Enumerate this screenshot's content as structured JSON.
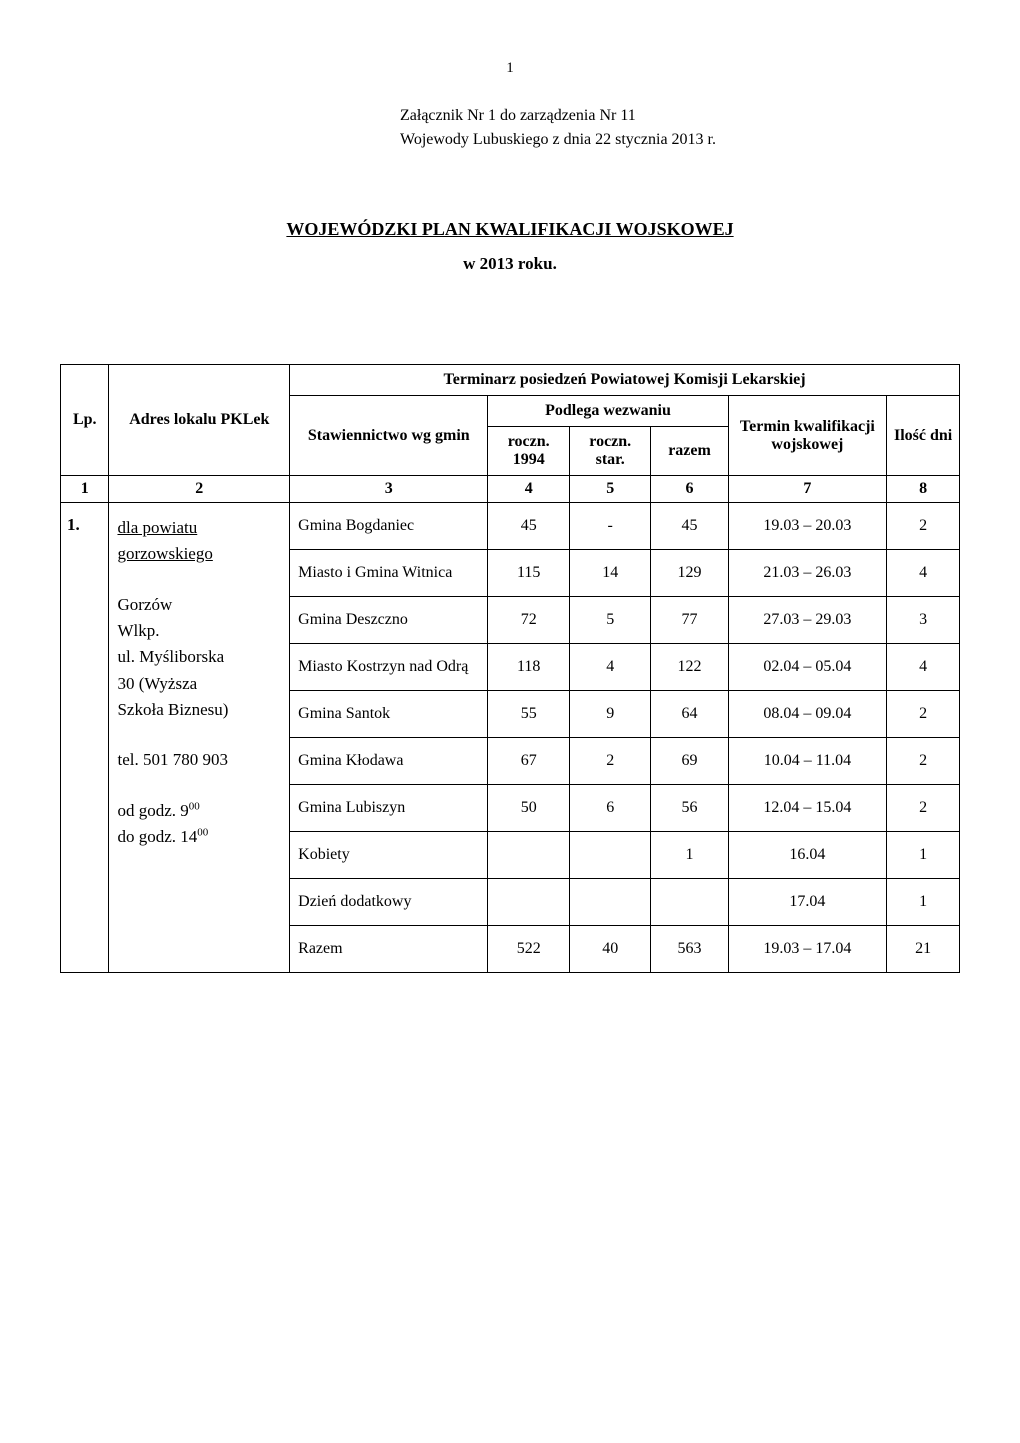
{
  "page_number": "1",
  "attachment_line1": "Załącznik Nr 1 do zarządzenia Nr  11",
  "attachment_line2": "Wojewody Lubuskiego z dnia 22 stycznia 2013 r.",
  "main_title": "WOJEWÓDZKI PLAN KWALIFIKACJI WOJSKOWEJ",
  "sub_title": "w 2013 roku.",
  "headers": {
    "lp": "Lp.",
    "adres": "Adres lokalu PKLek",
    "terminarz": "Terminarz posiedzeń Powiatowej Komisji Lekarskiej",
    "stawiennictwo": "Stawiennictwo wg gmin",
    "podlega": "Podlega wezwaniu",
    "roczn_1994": "roczn. 1994",
    "roczn_star": "roczn. star.",
    "razem": "razem",
    "termin": "Termin kwalifikacji wojskowej",
    "ilosc_dni": "Ilość dni"
  },
  "col_numbers": {
    "c1": "1",
    "c2": "2",
    "c3": "3",
    "c4": "4",
    "c5": "5",
    "c6": "6",
    "c7": "7",
    "c8": "8"
  },
  "section": {
    "lp": "1.",
    "adres_powiat1": "dla powiatu",
    "adres_powiat2": "gorzowskiego",
    "adres_block1_l1": "Gorzów",
    "adres_block1_l2": "Wlkp.",
    "adres_block1_l3": "ul. Myśliborska",
    "adres_block1_l4": "30 (Wyższa",
    "adres_block1_l5": "Szkoła Biznesu)",
    "adres_tel": "tel. 501 780 903",
    "adres_godz1_pre": "od godz. 9",
    "adres_godz1_sup": "00",
    "adres_godz2_pre": "do godz. 14",
    "adres_godz2_sup": "00"
  },
  "rows": [
    {
      "gmina": "Gmina Bogdaniec",
      "r94": "45",
      "rst": "-",
      "raz": "45",
      "term": "19.03 – 20.03",
      "dni": "2"
    },
    {
      "gmina": "Miasto  i Gmina Witnica",
      "r94": "115",
      "rst": "14",
      "raz": "129",
      "term": "21.03 – 26.03",
      "dni": "4"
    },
    {
      "gmina": "Gmina Deszczno",
      "r94": "72",
      "rst": "5",
      "raz": "77",
      "term": "27.03 – 29.03",
      "dni": "3"
    },
    {
      "gmina": "Miasto Kostrzyn nad Odrą",
      "r94": "118",
      "rst": "4",
      "raz": "122",
      "term": "02.04 – 05.04",
      "dni": "4"
    },
    {
      "gmina": "Gmina Santok",
      "r94": "55",
      "rst": "9",
      "raz": "64",
      "term": "08.04 – 09.04",
      "dni": "2"
    },
    {
      "gmina": "Gmina Kłodawa",
      "r94": "67",
      "rst": "2",
      "raz": "69",
      "term": "10.04 – 11.04",
      "dni": "2"
    },
    {
      "gmina": "Gmina Lubiszyn",
      "r94": "50",
      "rst": "6",
      "raz": "56",
      "term": "12.04 – 15.04",
      "dni": "2"
    },
    {
      "gmina": "Kobiety",
      "r94": "",
      "rst": "",
      "raz": "1",
      "term": "16.04",
      "dni": "1"
    },
    {
      "gmina": "Dzień dodatkowy",
      "r94": "",
      "rst": "",
      "raz": "",
      "term": "17.04",
      "dni": "1"
    },
    {
      "gmina": "Razem",
      "r94": "522",
      "rst": "40",
      "raz": "563",
      "term": "19.03 – 17.04",
      "dni": "21"
    }
  ]
}
